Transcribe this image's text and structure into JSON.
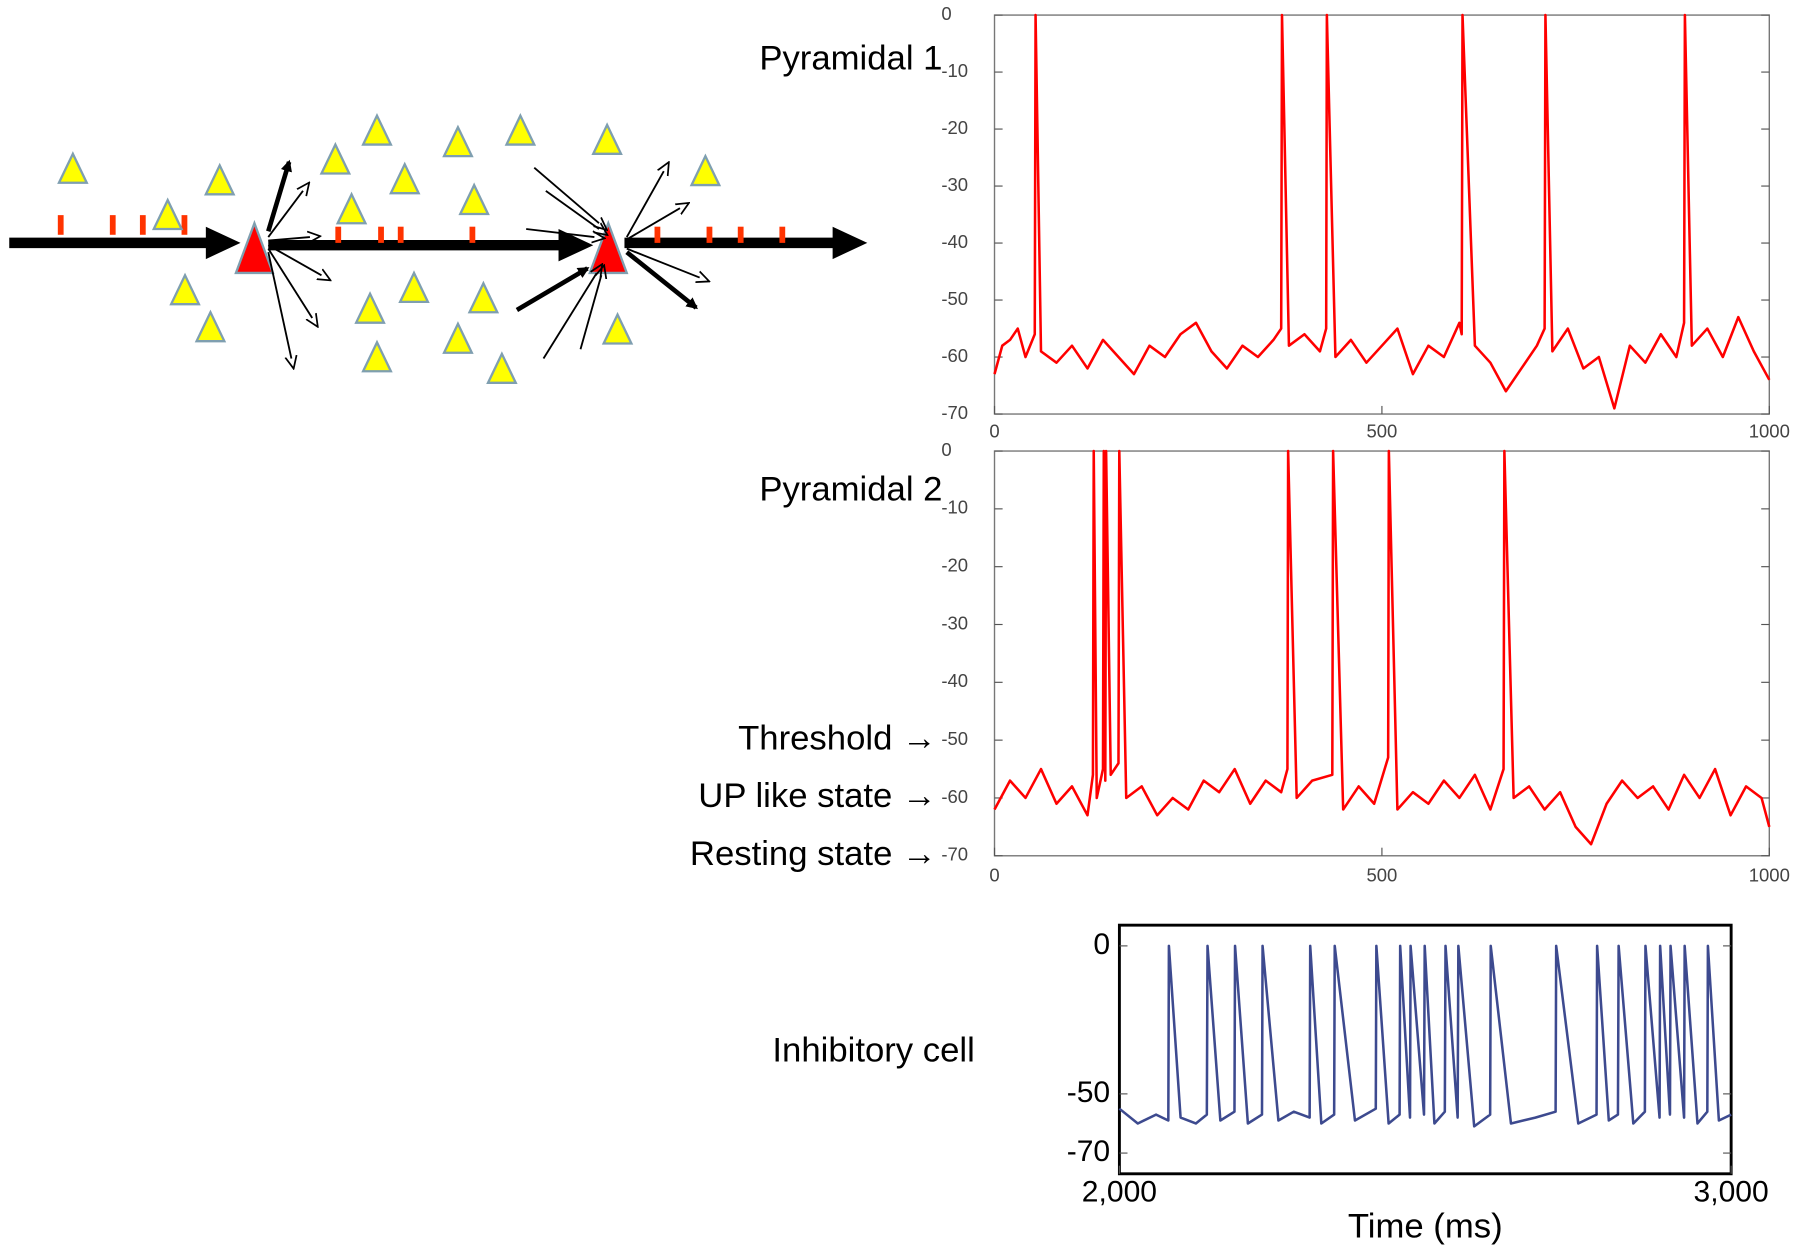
{
  "chart_data": [
    {
      "type": "line",
      "title": "Pyramidal 1",
      "color": "#ff0000",
      "x": [
        0,
        10,
        20,
        30,
        40,
        52,
        53,
        60,
        80,
        100,
        120,
        140,
        160,
        180,
        200,
        220,
        240,
        260,
        280,
        300,
        320,
        340,
        360,
        370,
        371,
        380,
        400,
        420,
        428,
        429,
        440,
        460,
        480,
        500,
        520,
        540,
        560,
        580,
        600,
        603,
        604,
        620,
        640,
        660,
        680,
        700,
        710,
        711,
        720,
        740,
        760,
        780,
        800,
        820,
        840,
        860,
        880,
        890,
        891,
        900,
        920,
        940,
        960,
        980,
        1000
      ],
      "values": [
        -63,
        -58,
        -57,
        -55,
        -60,
        -56,
        0,
        -59,
        -61,
        -58,
        -62,
        -57,
        -60,
        -63,
        -58,
        -60,
        -56,
        -54,
        -59,
        -62,
        -58,
        -60,
        -57,
        -55,
        0,
        -58,
        -56,
        -59,
        -55,
        0,
        -60,
        -57,
        -61,
        -58,
        -55,
        -63,
        -58,
        -60,
        -54,
        -56,
        0,
        -58,
        -61,
        -66,
        -62,
        -58,
        -55,
        0,
        -59,
        -55,
        -62,
        -60,
        -69,
        -58,
        -61,
        -56,
        -60,
        -54,
        0,
        -58,
        -55,
        -60,
        -53,
        -59,
        -64
      ],
      "xlim": [
        0,
        1000
      ],
      "xticks": [
        0,
        500,
        1000
      ],
      "ylim": [
        -70,
        0
      ],
      "yticks": [
        0,
        -10,
        -20,
        -30,
        -40,
        -50,
        -60,
        -70
      ]
    },
    {
      "type": "line",
      "title": "Pyramidal 2",
      "color": "#ff0000",
      "x": [
        0,
        20,
        40,
        60,
        80,
        100,
        120,
        127,
        128,
        132,
        140,
        141,
        143,
        144,
        150,
        160,
        161,
        170,
        190,
        210,
        230,
        250,
        270,
        290,
        310,
        330,
        350,
        370,
        378,
        379,
        390,
        410,
        436,
        437,
        450,
        470,
        490,
        508,
        509,
        520,
        540,
        560,
        580,
        600,
        620,
        640,
        657,
        658,
        670,
        690,
        710,
        730,
        750,
        770,
        790,
        810,
        830,
        850,
        870,
        890,
        910,
        930,
        950,
        970,
        990,
        1000
      ],
      "values": [
        -62,
        -57,
        -60,
        -55,
        -61,
        -58,
        -63,
        -56,
        0,
        -60,
        -55,
        0,
        -57,
        0,
        -56,
        -54,
        0,
        -60,
        -58,
        -63,
        -60,
        -62,
        -57,
        -59,
        -55,
        -61,
        -57,
        -59,
        -55,
        0,
        -60,
        -57,
        -56,
        0,
        -62,
        -58,
        -61,
        -53,
        0,
        -62,
        -59,
        -61,
        -57,
        -60,
        -56,
        -62,
        -55,
        0,
        -60,
        -58,
        -62,
        -59,
        -65,
        -68,
        -61,
        -57,
        -60,
        -58,
        -62,
        -56,
        -60,
        -55,
        -63,
        -58,
        -60,
        -65
      ],
      "xlim": [
        0,
        1000
      ],
      "xticks": [
        0,
        500,
        1000
      ],
      "ylim": [
        -70,
        0
      ],
      "yticks": [
        0,
        -10,
        -20,
        -30,
        -40,
        -50,
        -60,
        -70
      ],
      "annotations": [
        {
          "text": "Threshold  →",
          "value": -50
        },
        {
          "text": "UP like state →",
          "value": -60
        },
        {
          "text": "Resting state →",
          "value": -70
        }
      ]
    },
    {
      "type": "line",
      "title": "Inhibitory cell",
      "color": "#3d4a8f",
      "xlabel": "Time (ms)",
      "x": [
        2000,
        2030,
        2060,
        2080,
        2081,
        2100,
        2125,
        2143,
        2144,
        2165,
        2188,
        2189,
        2210,
        2233,
        2234,
        2260,
        2285,
        2311,
        2312,
        2330,
        2351,
        2352,
        2385,
        2419,
        2420,
        2440,
        2458,
        2459,
        2475,
        2476,
        2498,
        2499,
        2515,
        2532,
        2533,
        2553,
        2554,
        2580,
        2606,
        2607,
        2640,
        2680,
        2713,
        2714,
        2750,
        2780,
        2781,
        2800,
        2815,
        2816,
        2840,
        2859,
        2860,
        2883,
        2884,
        2900,
        2901,
        2923,
        2924,
        2945,
        2961,
        2962,
        2980,
        3000
      ],
      "values": [
        -55,
        -60,
        -57,
        -59,
        0,
        -58,
        -60,
        -57,
        0,
        -59,
        -56,
        0,
        -60,
        -57,
        0,
        -59,
        -56,
        -58,
        0,
        -60,
        -57,
        0,
        -59,
        -55,
        0,
        -60,
        -57,
        0,
        -58,
        0,
        -57,
        0,
        -60,
        -56,
        0,
        -58,
        0,
        -61,
        -57,
        0,
        -60,
        -58,
        -56,
        0,
        -60,
        -57,
        0,
        -59,
        -57,
        0,
        -60,
        -56,
        0,
        -58,
        0,
        -57,
        0,
        -58,
        0,
        -60,
        -56,
        0,
        -59,
        -57
      ],
      "xlim": [
        2000,
        3000
      ],
      "xticks": [
        {
          "value": 2000,
          "label": "2,000"
        },
        {
          "value": 3000,
          "label": "3,000"
        }
      ],
      "ylim": [
        -77,
        7
      ],
      "yticks": [
        0,
        -50,
        -70
      ]
    }
  ]
}
